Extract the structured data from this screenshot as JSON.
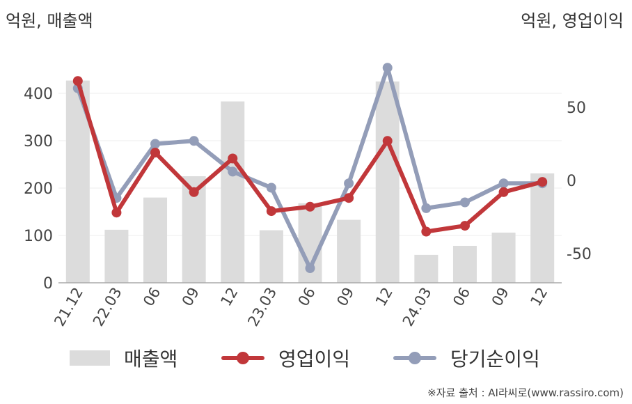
{
  "units": {
    "left": "억원, 매출액",
    "right": "억원, 영업이익"
  },
  "legend": {
    "bar": "매출액",
    "line1": "영업이익",
    "line2": "당기순이익"
  },
  "source": "※자료 출처 : AI라씨로(www.rassiro.com)",
  "colors": {
    "bar": "#dcdcdc",
    "operating": "#c1373a",
    "net": "#939db8",
    "axis": "#aaaaaa",
    "grid": "#eeeeee"
  },
  "chart_data": {
    "type": "bar",
    "categories": [
      "21.12",
      "22.03",
      "06",
      "09",
      "12",
      "23.03",
      "06",
      "09",
      "12",
      "24.03",
      "06",
      "09",
      "12"
    ],
    "series": [
      {
        "name": "매출액",
        "type": "bar",
        "axis": "left",
        "values": [
          427,
          112,
          180,
          225,
          383,
          111,
          168,
          133,
          425,
          59,
          78,
          106,
          231
        ]
      },
      {
        "name": "영업이익",
        "type": "line",
        "axis": "right",
        "values": [
          68,
          -22,
          19,
          -8,
          15,
          -21,
          -18,
          -12,
          27,
          -35,
          -31,
          -8,
          -1
        ]
      },
      {
        "name": "당기순이익",
        "type": "line",
        "axis": "right",
        "values": [
          63,
          -12,
          25,
          27,
          6,
          -5,
          -60,
          -2,
          77,
          -19,
          -15,
          -2,
          -2
        ]
      }
    ],
    "y_left": {
      "ticks": [
        0,
        100,
        200,
        300,
        400
      ],
      "min": 0,
      "max": 470
    },
    "y_right": {
      "ticks": [
        50,
        0,
        -50
      ],
      "min": -70,
      "max": 80
    },
    "grid": true,
    "legend_position": "bottom"
  }
}
